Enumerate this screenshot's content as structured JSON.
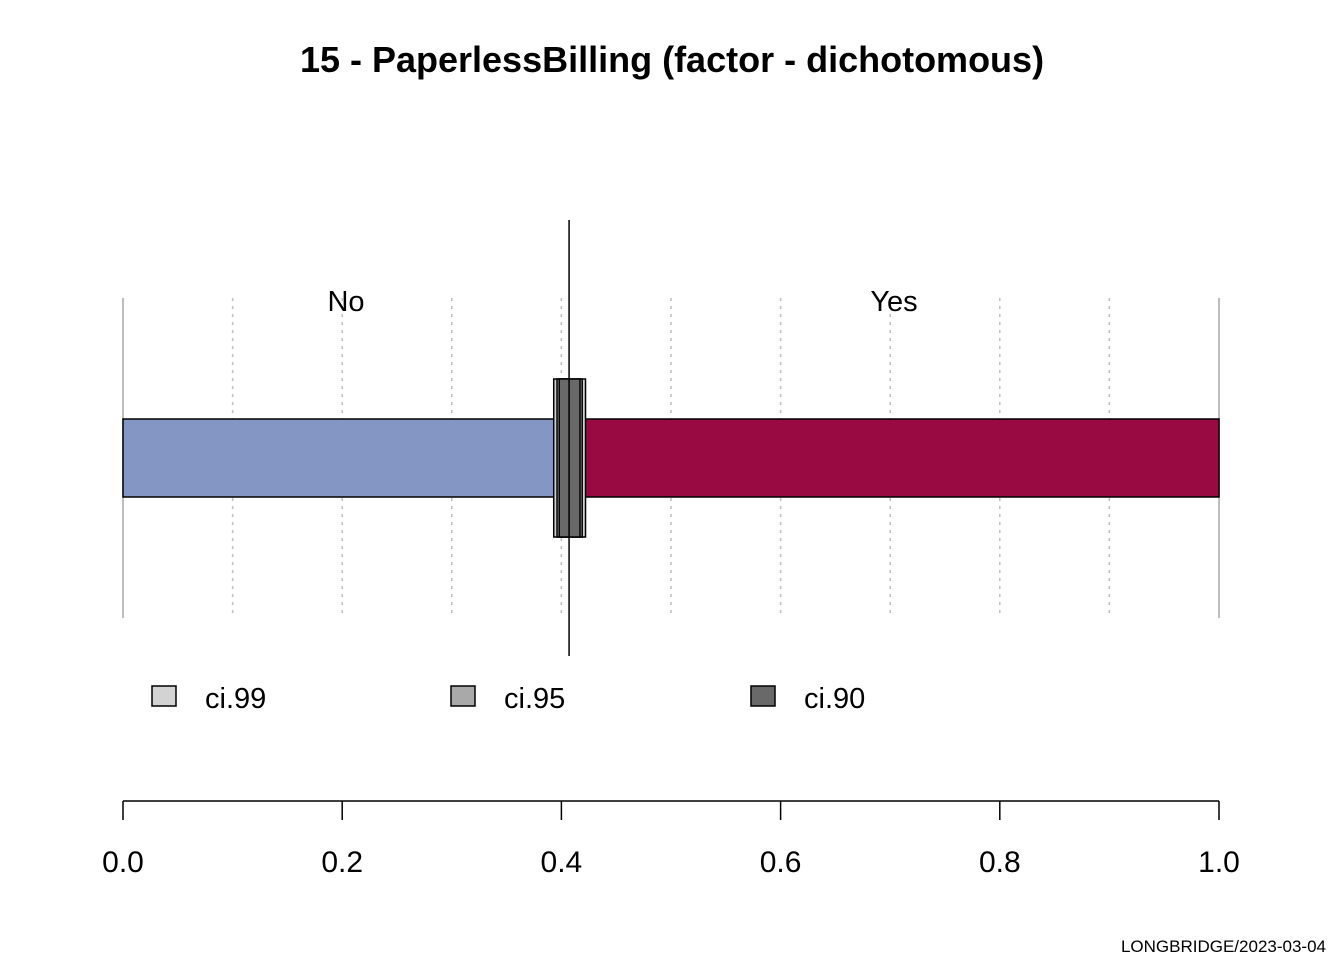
{
  "chart_data": {
    "type": "bar",
    "title": "15 - PaperlessBilling (factor - dichotomous)",
    "orientation": "horizontal-stacked-proportion",
    "categories": [
      "No",
      "Yes"
    ],
    "values": [
      0.407,
      0.593
    ],
    "colors": [
      "#8497C4",
      "#990A42"
    ],
    "marker_value": 0.407,
    "confidence_intervals": [
      {
        "name": "ci.99",
        "low": 0.393,
        "high": 0.422,
        "color": "#D3D3D3"
      },
      {
        "name": "ci.95",
        "low": 0.396,
        "high": 0.419,
        "color": "#A9A9A9"
      },
      {
        "name": "ci.90",
        "low": 0.398,
        "high": 0.417,
        "color": "#696969"
      }
    ],
    "xlim": [
      0,
      1
    ],
    "x_ticks": [
      0.0,
      0.2,
      0.4,
      0.6,
      0.8,
      1.0
    ],
    "x_tick_labels": [
      "0.0",
      "0.2",
      "0.4",
      "0.6",
      "0.8",
      "1.0"
    ],
    "grid": true,
    "legend": [
      "ci.99",
      "ci.95",
      "ci.90"
    ],
    "legend_position": "bottom"
  },
  "footer": "LONGBRIDGE/2023-03-04"
}
